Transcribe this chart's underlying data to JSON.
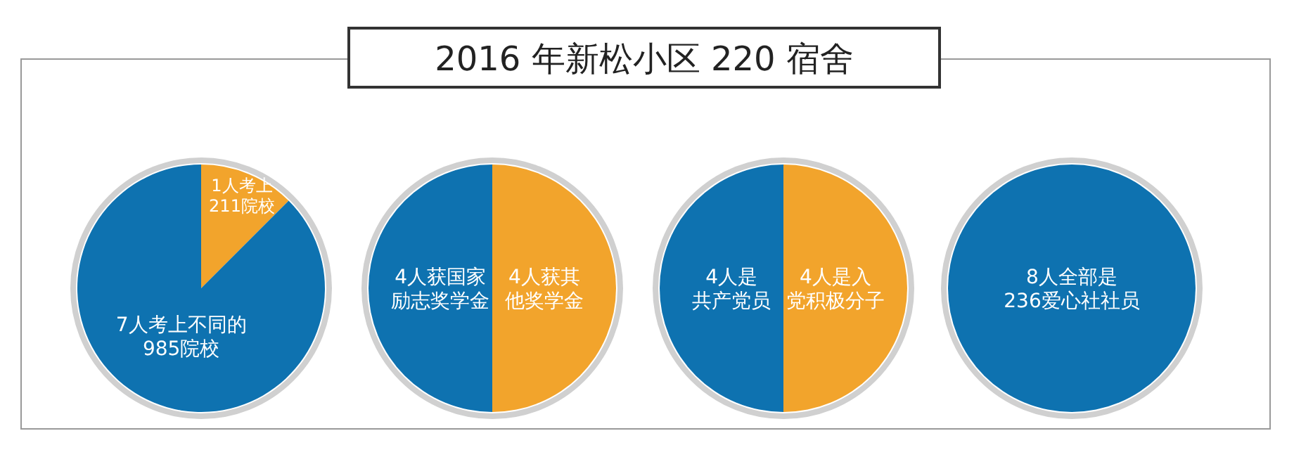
{
  "chart_data": [
    {
      "type": "pie",
      "title": "2016 年新松小区 220 宿舍",
      "categories": [
        "1人考上211院校",
        "7人考上不同的985院校"
      ],
      "values": [
        1,
        7
      ],
      "colors": [
        "#f2a42c",
        "#0e72b0"
      ]
    },
    {
      "type": "pie",
      "categories": [
        "4人获其他奖学金",
        "4人获国家励志奖学金"
      ],
      "values": [
        4,
        4
      ],
      "colors": [
        "#f2a42c",
        "#0e72b0"
      ]
    },
    {
      "type": "pie",
      "categories": [
        "4人是入党积极分子",
        "4人是共产党员"
      ],
      "values": [
        4,
        4
      ],
      "colors": [
        "#f2a42c",
        "#0e72b0"
      ]
    },
    {
      "type": "pie",
      "categories": [
        "8人全部是236爱心社社员"
      ],
      "values": [
        8
      ],
      "colors": [
        "#0e72b0"
      ]
    }
  ]
}
